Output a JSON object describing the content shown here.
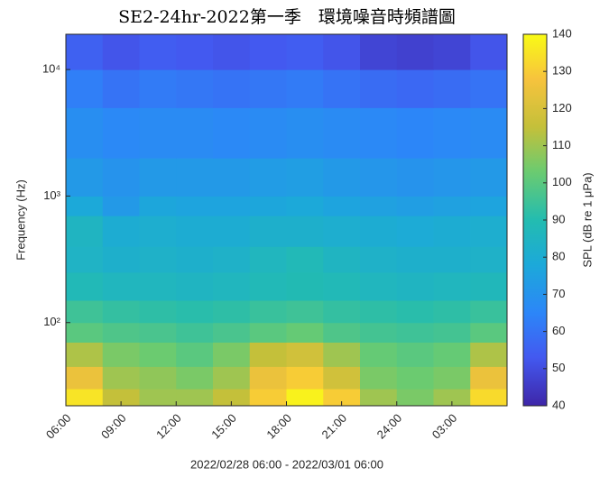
{
  "chart_data": {
    "type": "heatmap",
    "title": "SE2-24hr-2022第一季　環境噪音時頻譜圖",
    "x_label": "2022/02/28 06:00 - 2022/03/01  06:00",
    "y_label": "Frequency (Hz)",
    "colorbar_label": "SPL (dB re 1 μPa)",
    "colormap": "parula",
    "y_scale": "log",
    "xlim": [
      0,
      24
    ],
    "xticks": [
      {
        "value": 0,
        "label": "06:00"
      },
      {
        "value": 3,
        "label": "09:00"
      },
      {
        "value": 6,
        "label": "12:00"
      },
      {
        "value": 9,
        "label": "15:00"
      },
      {
        "value": 12,
        "label": "18:00"
      },
      {
        "value": 15,
        "label": "21:00"
      },
      {
        "value": 18,
        "label": "24:00"
      },
      {
        "value": 21,
        "label": "03:00"
      }
    ],
    "ylim": [
      22,
      19000
    ],
    "yticks": [
      {
        "value": 100,
        "label": "10²"
      },
      {
        "value": 1000,
        "label": "10³"
      },
      {
        "value": 10000,
        "label": "10⁴"
      }
    ],
    "clim": [
      40,
      140
    ],
    "cticks": [
      40,
      50,
      60,
      70,
      80,
      90,
      100,
      110,
      120,
      130,
      140
    ],
    "x_bins": [
      0,
      2,
      4,
      6,
      8,
      10,
      12,
      14,
      16,
      18,
      20,
      22,
      24
    ],
    "y_bins": [
      22,
      30,
      45,
      70,
      100,
      150,
      250,
      400,
      700,
      1000,
      2000,
      5000,
      10000,
      19000
    ],
    "values": [
      [
        135,
        115,
        110,
        110,
        115,
        130,
        138,
        130,
        110,
        105,
        110,
        133
      ],
      [
        125,
        110,
        108,
        105,
        110,
        125,
        130,
        118,
        105,
        103,
        105,
        125
      ],
      [
        112,
        105,
        103,
        100,
        105,
        115,
        118,
        110,
        102,
        100,
        102,
        112
      ],
      [
        100,
        98,
        97,
        95,
        97,
        100,
        102,
        98,
        96,
        95,
        96,
        100
      ],
      [
        95,
        93,
        92,
        91,
        92,
        94,
        95,
        93,
        92,
        91,
        92,
        94
      ],
      [
        88,
        86,
        86,
        85,
        86,
        88,
        89,
        88,
        86,
        85,
        86,
        87
      ],
      [
        84,
        82,
        83,
        82,
        83,
        86,
        88,
        85,
        83,
        82,
        82,
        83
      ],
      [
        85,
        80,
        81,
        80,
        80,
        82,
        82,
        81,
        80,
        79,
        80,
        81
      ],
      [
        78,
        72,
        77,
        76,
        76,
        77,
        78,
        76,
        75,
        74,
        75,
        76
      ],
      [
        72,
        70,
        72,
        72,
        72,
        73,
        74,
        72,
        71,
        70,
        71,
        72
      ],
      [
        68,
        66,
        67,
        67,
        66,
        67,
        68,
        67,
        66,
        65,
        66,
        67
      ],
      [
        63,
        60,
        62,
        61,
        60,
        61,
        62,
        60,
        58,
        57,
        58,
        60
      ],
      [
        55,
        52,
        54,
        53,
        52,
        53,
        54,
        52,
        48,
        47,
        48,
        52
      ]
    ]
  }
}
